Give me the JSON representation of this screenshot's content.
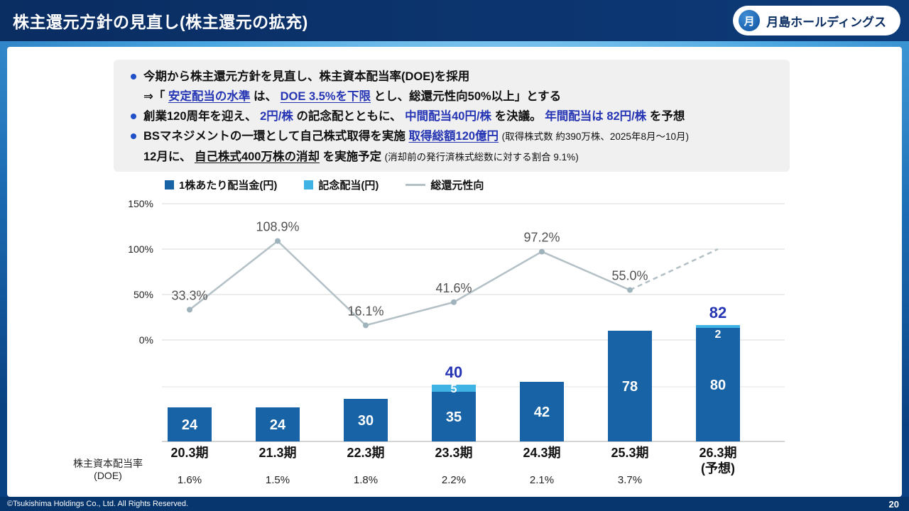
{
  "header": {
    "title": "株主還元方針の見直し(株主還元の拡充)",
    "logo_mark": "月",
    "logo_text": "月島ホールディングス"
  },
  "bullets": {
    "b1": "今期から株主還元方針を見直し、株主資本配当率(DOE)を採用",
    "b1sub": {
      "s1": "⇒「",
      "s2": "安定配当の水準",
      "s3": "は、",
      "s4": "DOE 3.5%を下限",
      "s5": "とし、総還元性向50%以上」とする"
    },
    "b2": {
      "s1": "創業120周年を迎え、",
      "s2": "2円/株",
      "s3": "の記念配とともに、",
      "s4": "中間配当40円/株",
      "s5": "を決議。",
      "s6": "年間配当は",
      "s7": "82円/株",
      "s8": "を予想"
    },
    "b3": {
      "s1": "BSマネジメントの一環として自己株式取得を実施 ",
      "s2": "取得総額120億円",
      "s3": "(取得株式数 約390万株、2025年8月〜10月)"
    },
    "b3sub": {
      "s1": "12月に、",
      "s2": "自己株式400万株の消却",
      "s3": "を実施予定",
      "s4": "(消却前の発行済株式総数に対する割合 9.1%)"
    }
  },
  "chart_data": {
    "type": "bar",
    "subtype": "stacked-bar-with-line",
    "categories": [
      "20.3期",
      "21.3期",
      "22.3期",
      "23.3期",
      "24.3期",
      "25.3期",
      "26.3期"
    ],
    "category_sub": [
      "",
      "",
      "",
      "",
      "",
      "",
      "(予想)"
    ],
    "series": [
      {
        "name": "1株あたり配当金(円)",
        "type": "bar",
        "color": "#1763a5",
        "values": [
          24,
          24,
          30,
          35,
          42,
          78,
          80
        ]
      },
      {
        "name": "記念配当(円)",
        "type": "bar",
        "color": "#3eb3e4",
        "values": [
          0,
          0,
          0,
          5,
          0,
          0,
          2
        ]
      },
      {
        "name": "総還元性向",
        "type": "line",
        "color": "#b3c0c6",
        "values": [
          33.3,
          108.9,
          16.1,
          41.6,
          97.2,
          55.0,
          100
        ],
        "labels": [
          "33.3%",
          "108.9%",
          "16.1%",
          "41.6%",
          "97.2%",
          "55.0%",
          ""
        ],
        "last_segment_dashed": true
      }
    ],
    "bar_total_labels": [
      "",
      "",
      "",
      "40",
      "",
      "",
      "82"
    ],
    "doe_row": {
      "label_line1": "株主資本配当率",
      "label_line2": "(DOE)",
      "values": [
        "1.6%",
        "1.5%",
        "1.8%",
        "2.2%",
        "2.1%",
        "3.7%",
        ""
      ]
    },
    "y_axis": {
      "ticks": [
        "150%",
        "100%",
        "50%",
        "0%"
      ],
      "min": 0,
      "max": 150,
      "grid": true
    },
    "legend_position": "top"
  },
  "footer": {
    "copyright": "©Tsukishima Holdings Co., Ltd. All Rights Reserved.",
    "page": "20"
  }
}
